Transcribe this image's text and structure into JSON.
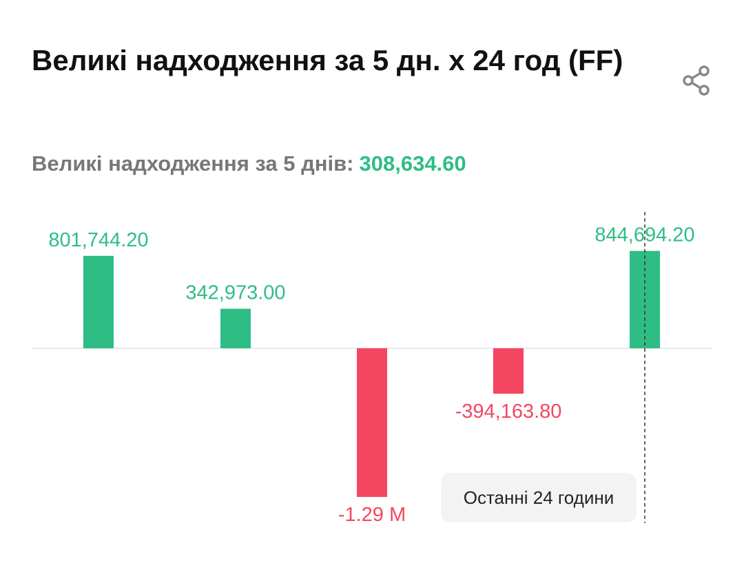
{
  "header": {
    "title": "Великі надходження за 5 дн. х 24 год (FF)",
    "share_icon": "share-icon"
  },
  "summary": {
    "label": "Великі надходження за 5 днів:",
    "value": "308,634.60"
  },
  "colors": {
    "positive": "#2ebd85",
    "negative": "#f44660",
    "baseline": "#e8e8e8"
  },
  "tooltip": {
    "label": "Останні 24 години"
  },
  "chart_data": {
    "type": "bar",
    "values": [
      801744.2,
      342973.0,
      -1290000,
      -394163.8,
      844694.2
    ],
    "data_labels": [
      "801,744.20",
      "342,973.00",
      "-1.29 M",
      "-394,163.80",
      "844,694.20"
    ],
    "highlight_index": 4,
    "grid": false,
    "legend": "none"
  }
}
